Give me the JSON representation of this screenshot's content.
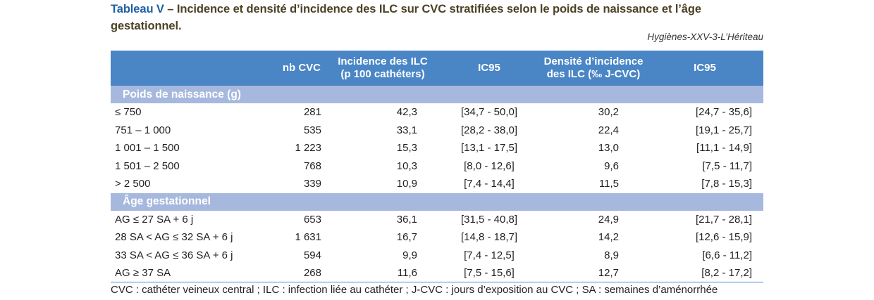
{
  "title": {
    "lead": "Tableau V",
    "text": " – Incidence et densité d’incidence des ILC sur CVC stratifiées selon le poids de naissance et l’âge gestationnel."
  },
  "source": "Hygiènes-XXV-3-L’Hériteau",
  "table": {
    "headers": [
      "",
      "nb CVC",
      "Incidence des ILC\n(p 100 cathéters)",
      "IC95",
      "Densité d’incidence\ndes ILC (‰ J-CVC)",
      "IC95"
    ],
    "sections": [
      {
        "label": "Poids de naissance (g)",
        "rows": [
          [
            "≤ 750",
            "281",
            "42,3",
            "[34,7 - 50,0]",
            "30,2",
            "[24,7 - 35,6]"
          ],
          [
            "751 – 1 000",
            "535",
            "33,1",
            "[28,2 - 38,0]",
            "22,4",
            "[19,1 - 25,7]"
          ],
          [
            "1 001 – 1 500",
            "1 223",
            "15,3",
            "[13,1 - 17,5]",
            "13,0",
            "[11,1 - 14,9]"
          ],
          [
            "1 501 – 2 500",
            "768",
            "10,3",
            "[8,0 - 12,6]",
            "9,6",
            "[7,5 - 11,7]"
          ],
          [
            "> 2 500",
            "339",
            "10,9",
            "[7,4 - 14,4]",
            "11,5",
            "[7,8 - 15,3]"
          ]
        ]
      },
      {
        "label": "Âge gestationnel",
        "rows": [
          [
            "AG ≤ 27 SA + 6 j",
            "653",
            "36,1",
            "[31,5 - 40,8]",
            "24,9",
            "[21,7 - 28,1]"
          ],
          [
            "28 SA < AG ≤ 32 SA + 6 j",
            "1 631",
            "16,7",
            "[14,8 - 18,7]",
            "14,2",
            "[12,6 - 15,9]"
          ],
          [
            "33 SA < AG ≤ 36 SA + 6 j",
            "594",
            "9,9",
            "[7,4 - 12,5]",
            "8,9",
            "[6,6 - 11,2]"
          ],
          [
            "AG ≥ 37 SA",
            "268",
            "11,6",
            "[7,5 - 15,6]",
            "12,7",
            "[8,2 - 17,2]"
          ]
        ]
      }
    ]
  },
  "footnote": "CVC : cathéter veineux central ; ILC : infection liée au cathéter ; J-CVC : jours d’exposition au CVC ; SA : semaines d’aménorrhée",
  "colors": {
    "header_bg": "#4a86c6",
    "section_bg": "#a6b8dd",
    "title_lead": "#1f5fa6",
    "title_text": "#4d4126"
  }
}
